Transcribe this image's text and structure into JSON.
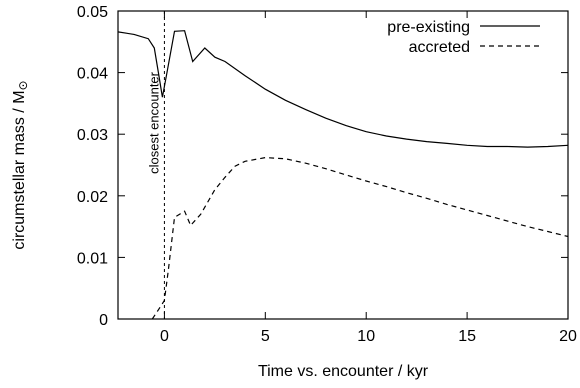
{
  "chart_data": {
    "type": "line",
    "title": "",
    "xlabel": "Time vs. encounter / kyr",
    "ylabel_main": "circumstellar mass / M",
    "ylabel_sub": "⊙",
    "xlim": [
      -2.3,
      20
    ],
    "ylim": [
      0,
      0.05
    ],
    "xticks": [
      {
        "value": 0,
        "label": "0"
      },
      {
        "value": 5,
        "label": "5"
      },
      {
        "value": 10,
        "label": "10"
      },
      {
        "value": 15,
        "label": "15"
      },
      {
        "value": 20,
        "label": "20"
      }
    ],
    "yticks": [
      {
        "value": 0,
        "label": "0"
      },
      {
        "value": 0.01,
        "label": "0.01"
      },
      {
        "value": 0.02,
        "label": "0.02"
      },
      {
        "value": 0.03,
        "label": "0.03"
      },
      {
        "value": 0.04,
        "label": "0.04"
      },
      {
        "value": 0.05,
        "label": "0.05"
      }
    ],
    "grid": false,
    "legend_position": "top-right",
    "series": [
      {
        "name": "pre-existing",
        "style": "solid",
        "points": [
          [
            -2.3,
            0.0466
          ],
          [
            -1.5,
            0.0462
          ],
          [
            -0.8,
            0.0455
          ],
          [
            -0.5,
            0.044
          ],
          [
            -0.3,
            0.04
          ],
          [
            -0.1,
            0.036
          ],
          [
            0.1,
            0.0395
          ],
          [
            0.5,
            0.0467
          ],
          [
            1.0,
            0.0468
          ],
          [
            1.4,
            0.0418
          ],
          [
            2.0,
            0.044
          ],
          [
            2.5,
            0.0425
          ],
          [
            3.0,
            0.0418
          ],
          [
            4.0,
            0.0395
          ],
          [
            5.0,
            0.0373
          ],
          [
            6.0,
            0.0355
          ],
          [
            7.0,
            0.034
          ],
          [
            8.0,
            0.0326
          ],
          [
            9.0,
            0.0314
          ],
          [
            10.0,
            0.0304
          ],
          [
            11.0,
            0.0297
          ],
          [
            12.0,
            0.0292
          ],
          [
            13.0,
            0.0288
          ],
          [
            14.0,
            0.0285
          ],
          [
            15.0,
            0.0282
          ],
          [
            16.0,
            0.028
          ],
          [
            17.0,
            0.028
          ],
          [
            18.0,
            0.0279
          ],
          [
            19.0,
            0.028
          ],
          [
            20.0,
            0.0282
          ]
        ]
      },
      {
        "name": "accreted",
        "style": "dashed",
        "points": [
          [
            -0.6,
            0.0
          ],
          [
            -0.3,
            0.0015
          ],
          [
            0.0,
            0.003
          ],
          [
            0.2,
            0.008
          ],
          [
            0.5,
            0.0165
          ],
          [
            1.0,
            0.0175
          ],
          [
            1.3,
            0.0152
          ],
          [
            1.8,
            0.017
          ],
          [
            2.5,
            0.021
          ],
          [
            3.0,
            0.023
          ],
          [
            3.5,
            0.0248
          ],
          [
            4.0,
            0.0256
          ],
          [
            5.0,
            0.0262
          ],
          [
            6.0,
            0.026
          ],
          [
            7.0,
            0.0253
          ],
          [
            8.0,
            0.0244
          ],
          [
            9.0,
            0.0234
          ],
          [
            10.0,
            0.0224
          ],
          [
            11.0,
            0.0215
          ],
          [
            12.0,
            0.0205
          ],
          [
            13.0,
            0.0196
          ],
          [
            14.0,
            0.0186
          ],
          [
            15.0,
            0.0177
          ],
          [
            16.0,
            0.0168
          ],
          [
            17.0,
            0.0159
          ],
          [
            18.0,
            0.015
          ],
          [
            19.0,
            0.0142
          ],
          [
            20.0,
            0.0134
          ]
        ]
      }
    ],
    "annotation": {
      "label": "closest encounter",
      "x": 0
    }
  }
}
